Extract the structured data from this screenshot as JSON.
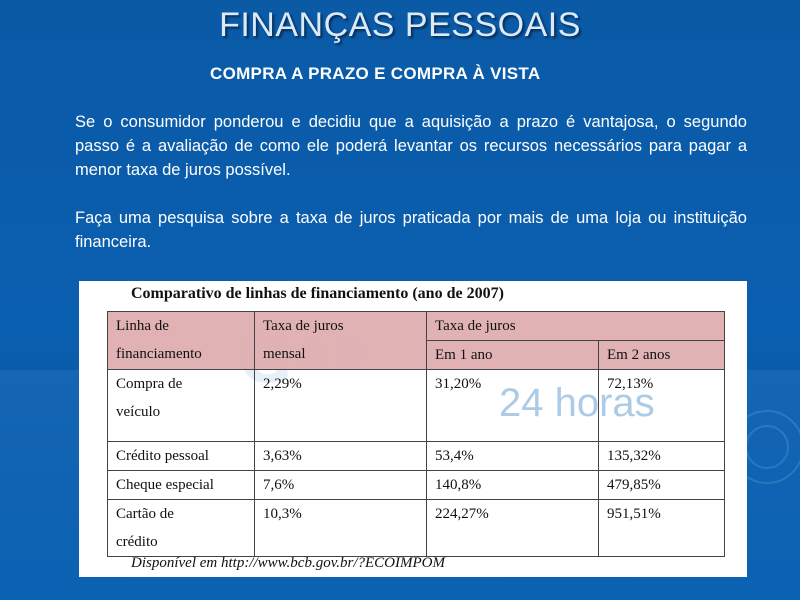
{
  "title": "FINANÇAS PESSOAIS",
  "subtitle": "COMPRA A PRAZO E COMPRA À VISTA",
  "paragraphs": [
    "Se o consumidor ponderou e decidiu que a aquisição a prazo é vantajosa, o segundo passo é a avaliação de como ele poderá levantar os recursos necessários para pagar a menor taxa de juros possível.",
    "Faça uma pesquisa sobre a taxa de juros praticada por mais de uma loja ou instituição financeira."
  ],
  "figure": {
    "title": "Comparativo de linhas de financiamento (ano de 2007)",
    "watermark": "24 horas",
    "headers": {
      "col1_line1": "Linha de",
      "col1_line2": "financiamento",
      "col2_line1": "Taxa de juros",
      "col2_line2": "mensal",
      "col3": "Taxa de juros",
      "sub1": "Em 1 ano",
      "sub2": "Em 2 anos"
    },
    "rows": [
      {
        "line1": "Compra de",
        "line2": "veículo",
        "mensal": "2,29%",
        "ano1": "31,20%",
        "ano2": "72,13%"
      },
      {
        "line1": "Crédito pessoal",
        "line2": "",
        "mensal": "3,63%",
        "ano1": "53,4%",
        "ano2": "135,32%"
      },
      {
        "line1": "Cheque especial",
        "line2": "",
        "mensal": "7,6%",
        "ano1": "140,8%",
        "ano2": "479,85%"
      },
      {
        "line1": "Cartão de",
        "line2": "crédito",
        "mensal": "10,3%",
        "ano1": "224,27%",
        "ano2": "951,51%"
      }
    ],
    "caption": "Disponível em http://www.bcb.gov.br/?ECOIMPOM"
  }
}
